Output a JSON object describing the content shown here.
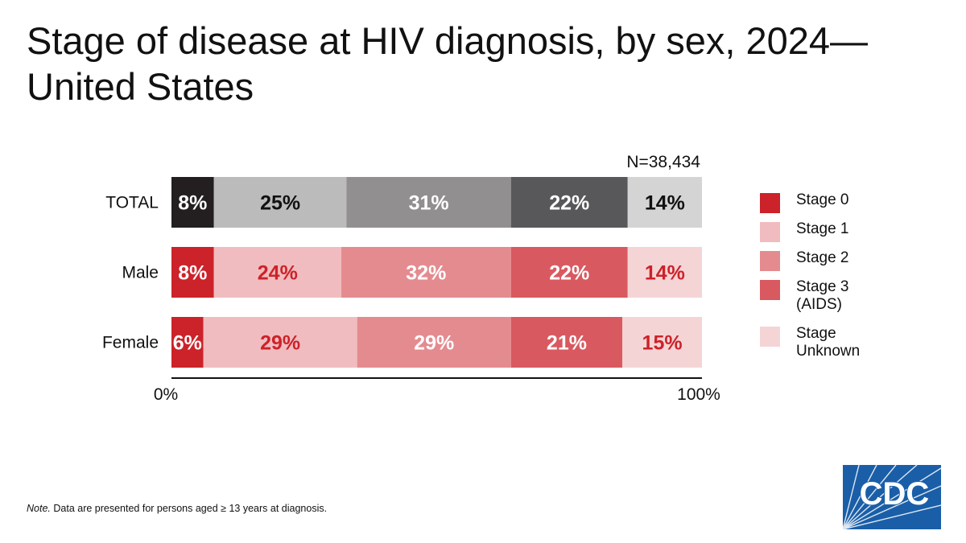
{
  "title": "Stage of disease at HIV diagnosis, by sex, 2024— United States",
  "note": {
    "prefix": "Note.",
    "text": " Data are presented for persons aged ≥ 13 years at diagnosis."
  },
  "logo": {
    "text": "CDC",
    "colors": {
      "primary": "#1a5ea8"
    }
  },
  "chart_data": {
    "type": "bar",
    "orientation": "horizontal",
    "stacked": true,
    "percent": true,
    "annotation": "N=38,434",
    "categories": [
      "TOTAL",
      "Male",
      "Female"
    ],
    "series": [
      {
        "name": "Stage 0",
        "values": [
          8,
          8,
          6
        ]
      },
      {
        "name": "Stage 1",
        "values": [
          25,
          24,
          29
        ]
      },
      {
        "name": "Stage 2",
        "values": [
          31,
          32,
          29
        ]
      },
      {
        "name": "Stage 3\n(AIDS)",
        "values": [
          22,
          22,
          21
        ]
      },
      {
        "name": "Stage\nUnknown",
        "values": [
          14,
          14,
          15
        ]
      }
    ],
    "row_colors": [
      [
        "#231f20",
        "#bcbbbb",
        "#918f90",
        "#58585a",
        "#d4d4d4"
      ],
      [
        "#cc2229",
        "#f1bcbf",
        "#e48b90",
        "#d95960",
        "#f5d4d6"
      ],
      [
        "#cc2229",
        "#f1bcbf",
        "#e48b90",
        "#d95960",
        "#f5d4d6"
      ]
    ],
    "label_colors": [
      [
        "#ffffff",
        "#111111",
        "#ffffff",
        "#ffffff",
        "#111111"
      ],
      [
        "#ffffff",
        "#cc2229",
        "#ffffff",
        "#ffffff",
        "#cc2229"
      ],
      [
        "#ffffff",
        "#cc2229",
        "#ffffff",
        "#ffffff",
        "#cc2229"
      ]
    ],
    "legend_colors": [
      "#cc2229",
      "#f1bcbf",
      "#e48b90",
      "#d95960",
      "#f5d4d6"
    ],
    "value_suffix": "%",
    "xlim": [
      0,
      100
    ],
    "x_ticks": [
      "0%",
      "100%"
    ],
    "grid": false,
    "legend": "right"
  }
}
